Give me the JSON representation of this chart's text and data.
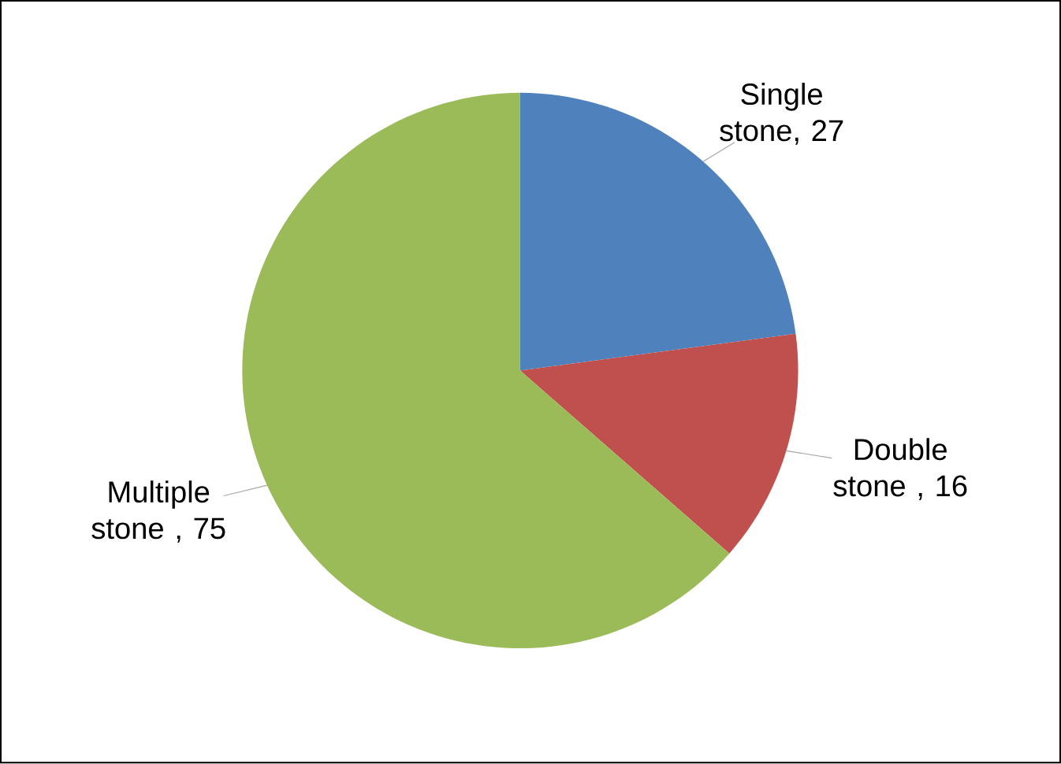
{
  "chart_data": {
    "type": "pie",
    "categories": [
      "Single stone",
      "Double stone",
      "Multiple stone"
    ],
    "values": [
      27,
      16,
      75
    ],
    "value_labels": [
      ", 27",
      " , 16",
      " , 75"
    ],
    "colors": [
      "#4f81bd",
      "#c0504d",
      "#9bbb59"
    ]
  }
}
